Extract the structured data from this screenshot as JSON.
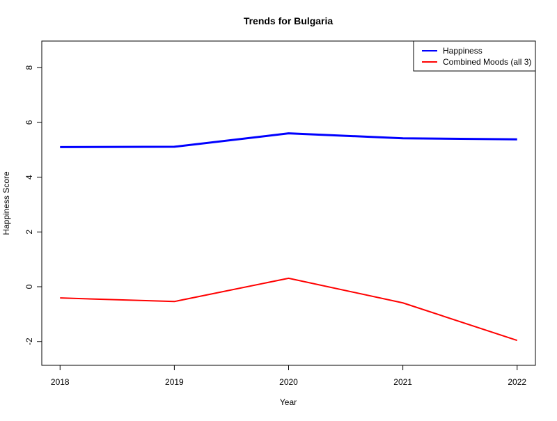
{
  "chart_data": {
    "type": "line",
    "title": "Trends for Bulgaria",
    "xlabel": "Year",
    "ylabel": "Happiness Score",
    "x": [
      2018,
      2019,
      2020,
      2021,
      2022
    ],
    "x_tick_labels": [
      "2018",
      "2019",
      "2020",
      "2021",
      "2022"
    ],
    "y_ticks": [
      -2,
      0,
      2,
      4,
      6,
      8
    ],
    "y_tick_labels": [
      "-2",
      "0",
      "2",
      "4",
      "6",
      "8"
    ],
    "xlim": [
      2017.84,
      2022.16
    ],
    "ylim": [
      -2.87,
      8.97
    ],
    "grid": false,
    "legend_position": "top-right",
    "series": [
      {
        "name": "Happiness",
        "color": "#0000ff",
        "line_style": "thick",
        "values": [
          5.1,
          5.11,
          5.6,
          5.42,
          5.38
        ]
      },
      {
        "name": "Combined Moods (all 3)",
        "color": "#ff0000",
        "line_style": "normal",
        "values": [
          -0.41,
          -0.54,
          0.31,
          -0.59,
          -1.96
        ]
      }
    ]
  }
}
